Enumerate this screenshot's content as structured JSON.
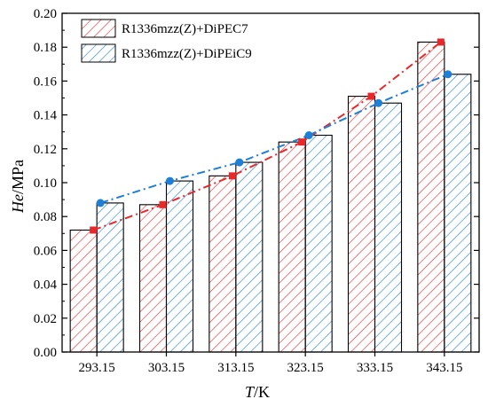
{
  "chart_data": {
    "type": "bar",
    "categories": [
      "293.15",
      "303.15",
      "313.15",
      "323.15",
      "333.15",
      "343.15"
    ],
    "series": [
      {
        "name": "R1336mzz(Z)+DiPEC7",
        "values": [
          0.072,
          0.087,
          0.104,
          0.124,
          0.151,
          0.183
        ],
        "color": "#e8282a",
        "line_style": "dash-dot",
        "marker": "square"
      },
      {
        "name": "R1336mzz(Z)+DiPEiC9",
        "values": [
          0.088,
          0.101,
          0.112,
          0.128,
          0.147,
          0.164
        ],
        "color": "#1e7fd6",
        "line_style": "dash-dot",
        "marker": "circle"
      }
    ],
    "yticks": [
      "0.00",
      "0.02",
      "0.04",
      "0.06",
      "0.08",
      "0.10",
      "0.12",
      "0.14",
      "0.16",
      "0.18",
      "0.20"
    ],
    "ylim": [
      0,
      0.2
    ],
    "xlabel": {
      "var": "T",
      "unit": "/K"
    },
    "ylabel": {
      "var": "He",
      "unit": "/MPa"
    },
    "legend_position": "top-left",
    "grid": false
  }
}
